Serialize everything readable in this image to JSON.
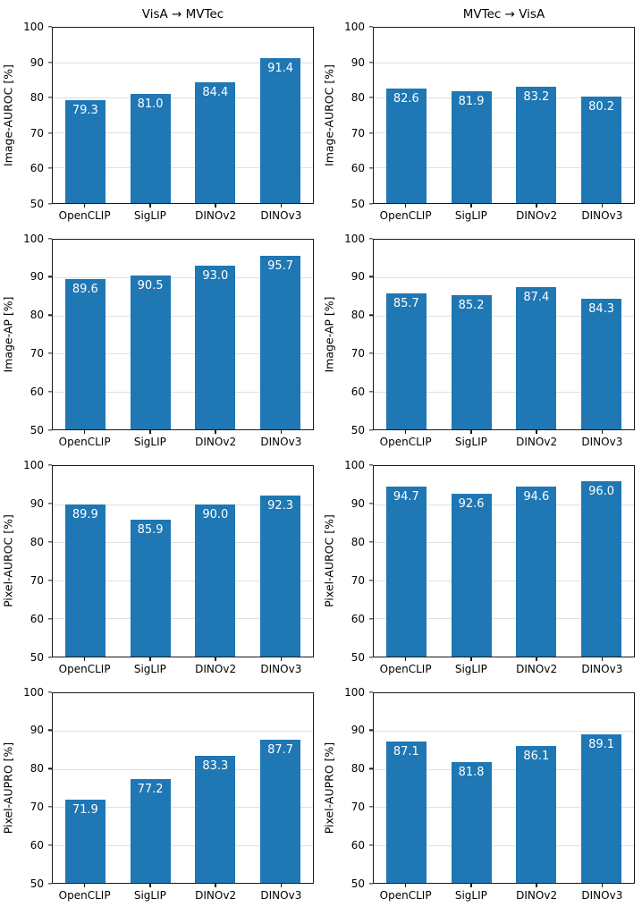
{
  "figure": {
    "column_titles": [
      "VisA → MVTec",
      "MVTec → VisA"
    ],
    "row_metrics": [
      "Image-AUROC [%]",
      "Image-AP [%]",
      "Pixel-AUROC [%]",
      "Pixel-AUPRO [%]"
    ]
  },
  "style": {
    "bar_color": "#1f77b4",
    "grid_color": "#e0e0e0",
    "spine_color": "#1a1a1a",
    "value_label_color": "#ffffff",
    "bar_width_ratio": 0.62
  },
  "chart_data": [
    {
      "type": "bar",
      "name": "visa-to-mvtec-image-auroc",
      "title": "VisA → MVTec",
      "ylabel": "Image-AUROC [%]",
      "categories": [
        "OpenCLIP",
        "SigLIP",
        "DINOv2",
        "DINOv3"
      ],
      "values": [
        79.3,
        81.0,
        84.4,
        91.4
      ],
      "ylim": [
        50,
        100
      ],
      "yticks": [
        50,
        60,
        70,
        80,
        90,
        100
      ],
      "grid": true,
      "legend": "none"
    },
    {
      "type": "bar",
      "name": "mvtec-to-visa-image-auroc",
      "title": "MVTec → VisA",
      "ylabel": "Image-AUROC [%]",
      "categories": [
        "OpenCLIP",
        "SigLIP",
        "DINOv2",
        "DINOv3"
      ],
      "values": [
        82.6,
        81.9,
        83.2,
        80.2
      ],
      "ylim": [
        50,
        100
      ],
      "yticks": [
        50,
        60,
        70,
        80,
        90,
        100
      ],
      "grid": true,
      "legend": "none"
    },
    {
      "type": "bar",
      "name": "visa-to-mvtec-image-ap",
      "title": "",
      "ylabel": "Image-AP [%]",
      "categories": [
        "OpenCLIP",
        "SigLIP",
        "DINOv2",
        "DINOv3"
      ],
      "values": [
        89.6,
        90.5,
        93.0,
        95.7
      ],
      "ylim": [
        50,
        100
      ],
      "yticks": [
        50,
        60,
        70,
        80,
        90,
        100
      ],
      "grid": true,
      "legend": "none"
    },
    {
      "type": "bar",
      "name": "mvtec-to-visa-image-ap",
      "title": "",
      "ylabel": "Image-AP [%]",
      "categories": [
        "OpenCLIP",
        "SigLIP",
        "DINOv2",
        "DINOv3"
      ],
      "values": [
        85.7,
        85.2,
        87.4,
        84.3
      ],
      "ylim": [
        50,
        100
      ],
      "yticks": [
        50,
        60,
        70,
        80,
        90,
        100
      ],
      "grid": true,
      "legend": "none"
    },
    {
      "type": "bar",
      "name": "visa-to-mvtec-pixel-auroc",
      "title": "",
      "ylabel": "Pixel-AUROC [%]",
      "categories": [
        "OpenCLIP",
        "SigLIP",
        "DINOv2",
        "DINOv3"
      ],
      "values": [
        89.9,
        85.9,
        90.0,
        92.3
      ],
      "ylim": [
        50,
        100
      ],
      "yticks": [
        50,
        60,
        70,
        80,
        90,
        100
      ],
      "grid": true,
      "legend": "none"
    },
    {
      "type": "bar",
      "name": "mvtec-to-visa-pixel-auroc",
      "title": "",
      "ylabel": "Pixel-AUROC [%]",
      "categories": [
        "OpenCLIP",
        "SigLIP",
        "DINOv2",
        "DINOv3"
      ],
      "values": [
        94.7,
        92.6,
        94.6,
        96.0
      ],
      "ylim": [
        50,
        100
      ],
      "yticks": [
        50,
        60,
        70,
        80,
        90,
        100
      ],
      "grid": true,
      "legend": "none"
    },
    {
      "type": "bar",
      "name": "visa-to-mvtec-pixel-aupro",
      "title": "",
      "ylabel": "Pixel-AUPRO [%]",
      "categories": [
        "OpenCLIP",
        "SigLIP",
        "DINOv2",
        "DINOv3"
      ],
      "values": [
        71.9,
        77.2,
        83.3,
        87.7
      ],
      "ylim": [
        50,
        100
      ],
      "yticks": [
        50,
        60,
        70,
        80,
        90,
        100
      ],
      "grid": true,
      "legend": "none"
    },
    {
      "type": "bar",
      "name": "mvtec-to-visa-pixel-aupro",
      "title": "",
      "ylabel": "Pixel-AUPRO [%]",
      "categories": [
        "OpenCLIP",
        "SigLIP",
        "DINOv2",
        "DINOv3"
      ],
      "values": [
        87.1,
        81.8,
        86.1,
        89.1
      ],
      "ylim": [
        50,
        100
      ],
      "yticks": [
        50,
        60,
        70,
        80,
        90,
        100
      ],
      "grid": true,
      "legend": "none"
    }
  ]
}
